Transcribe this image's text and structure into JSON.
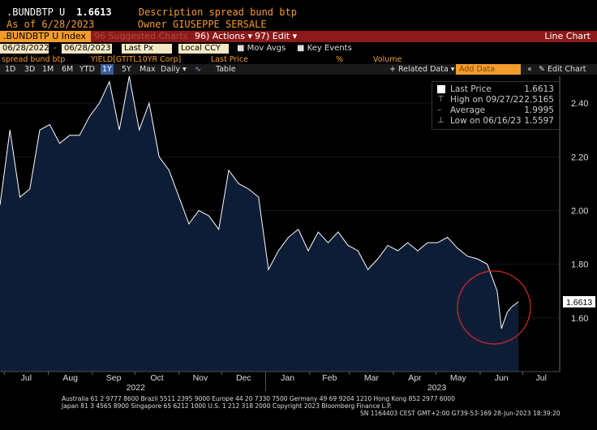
{
  "header": {
    "ticker": ".BUNDBTP U",
    "value": "1.6613",
    "desc_label": "Description",
    "desc_value": "spread bund btp",
    "asof_label": "As of",
    "asof_value": "6/28/2023",
    "owner_label": "Owner",
    "owner_value": "GIUSEPPE SERSALE"
  },
  "toolbar": {
    "index_tab": ".BUNDBTP U Index",
    "suggested": "96 Suggested Charts",
    "actions": "96) Actions ▾",
    "edit": "97) Edit ▾",
    "chart_type": "Line Chart",
    "start_date": "06/28/2022",
    "end_date": "06/28/2023",
    "px_field": "Last Px",
    "ccy_field": "Local CCY",
    "mov_avgs": "Mov Avgs",
    "key_events": "Key Events",
    "series_name": "spread bund btp",
    "yield_label": "YIELD[GTITL10YR Corp]",
    "last_price": "Last Price",
    "pct": "%",
    "volume": "Volume",
    "periods": [
      "1D",
      "3D",
      "1M",
      "6M",
      "YTD",
      "1Y",
      "5Y",
      "Max"
    ],
    "selected_period": "1Y",
    "freq": "Daily ▾",
    "table": "Table",
    "related": "+ Related Data ▾",
    "add_data": "Add Data",
    "edit_chart": "✎ Edit Chart"
  },
  "legend": {
    "last_price_label": "Last Price",
    "last_price_value": "1.6613",
    "high_label": "High on 09/27/22",
    "high_value": "2.5165",
    "avg_label": "Average",
    "avg_value": "1.9995",
    "low_label": "Low on 06/16/23",
    "low_value": "1.5597"
  },
  "colors": {
    "area": "#0e1d36",
    "line": "#ffffff",
    "accent": "#f39b2b",
    "annotation": "#d42a2a",
    "bar": "#8c1a1a"
  },
  "chart_data": {
    "type": "area",
    "ylim": [
      1.4,
      2.5
    ],
    "yticks": [
      1.6,
      1.8,
      2.0,
      2.2,
      2.4
    ],
    "ytick_labels": [
      "1.60",
      "1.80",
      "2.00",
      "2.20",
      "2.40"
    ],
    "x_months": [
      "Jul",
      "Aug",
      "Sep",
      "Oct",
      "Nov",
      "Dec",
      "Jan",
      "Feb",
      "Mar",
      "Apr",
      "May",
      "Jun",
      "Jul"
    ],
    "years": [
      "2022",
      "2023"
    ],
    "last_value_label": "1.6613",
    "x": [
      "2022-06-28",
      "2022-07-05",
      "2022-07-12",
      "2022-07-19",
      "2022-07-26",
      "2022-08-02",
      "2022-08-09",
      "2022-08-16",
      "2022-08-23",
      "2022-08-30",
      "2022-09-06",
      "2022-09-13",
      "2022-09-20",
      "2022-09-27",
      "2022-10-04",
      "2022-10-11",
      "2022-10-18",
      "2022-10-25",
      "2022-11-01",
      "2022-11-08",
      "2022-11-15",
      "2022-11-22",
      "2022-11-29",
      "2022-12-06",
      "2022-12-13",
      "2022-12-20",
      "2022-12-27",
      "2023-01-03",
      "2023-01-10",
      "2023-01-17",
      "2023-01-24",
      "2023-01-31",
      "2023-02-07",
      "2023-02-14",
      "2023-02-21",
      "2023-02-28",
      "2023-03-07",
      "2023-03-14",
      "2023-03-21",
      "2023-03-28",
      "2023-04-04",
      "2023-04-11",
      "2023-04-18",
      "2023-04-25",
      "2023-05-02",
      "2023-05-09",
      "2023-05-16",
      "2023-05-23",
      "2023-05-30",
      "2023-06-06",
      "2023-06-13",
      "2023-06-16",
      "2023-06-20",
      "2023-06-23",
      "2023-06-28"
    ],
    "values": [
      2.02,
      2.3,
      2.05,
      2.08,
      2.3,
      2.32,
      2.25,
      2.28,
      2.28,
      2.35,
      2.4,
      2.48,
      2.3,
      2.5,
      2.3,
      2.4,
      2.2,
      2.15,
      2.05,
      1.95,
      2.0,
      1.98,
      1.93,
      2.15,
      2.1,
      2.08,
      2.05,
      1.78,
      1.85,
      1.9,
      1.93,
      1.85,
      1.92,
      1.88,
      1.92,
      1.87,
      1.85,
      1.78,
      1.82,
      1.87,
      1.85,
      1.88,
      1.85,
      1.88,
      1.88,
      1.9,
      1.86,
      1.83,
      1.82,
      1.8,
      1.7,
      1.56,
      1.62,
      1.64,
      1.66
    ]
  },
  "annotation": {
    "type": "circle",
    "label": ""
  },
  "footer": {
    "line1": "Australia 61 2 9777 8600 Brazil 5511 2395 9000 Europe 44 20 7330 7500 Germany 49 69 9204 1210 Hong Kong 852 2977 6000",
    "line2": "Japan 81 3 4565 8900       Singapore 65 6212 1000       U.S. 1 212 318 2000             Copyright 2023 Bloomberg Finance L.P.",
    "line3": "SN 1164403 CEST GMT+2:00 G739-53-169 28-Jun-2023 18:39:20"
  }
}
